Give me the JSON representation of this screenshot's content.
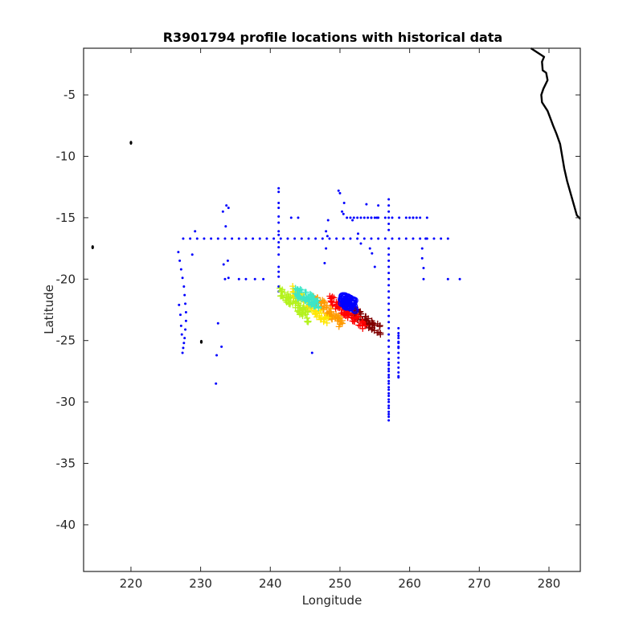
{
  "chart_data": {
    "type": "scatter",
    "title": "R3901794 profile locations with historical data",
    "xlabel": "Longitude",
    "ylabel": "Latitude",
    "xlim": [
      213.2,
      284.5
    ],
    "ylim": [
      -43.8,
      -1.2
    ],
    "xticks": [
      220,
      230,
      240,
      250,
      260,
      270,
      280
    ],
    "yticks": [
      -5,
      -10,
      -15,
      -20,
      -25,
      -30,
      -35,
      -40
    ],
    "grid": false,
    "colors": {
      "historical": "#0000ff",
      "coast": "#000000",
      "axes": "#262626"
    },
    "coastline": {
      "mainland": [
        [
          277.4,
          -1.2
        ],
        [
          279.3,
          -1.9
        ],
        [
          279.0,
          -2.3
        ],
        [
          279.1,
          -3.0
        ],
        [
          279.6,
          -3.2
        ],
        [
          279.8,
          -3.8
        ],
        [
          279.2,
          -4.5
        ],
        [
          278.9,
          -5.0
        ],
        [
          279.0,
          -5.6
        ],
        [
          279.8,
          -6.3
        ],
        [
          280.2,
          -6.9
        ],
        [
          280.6,
          -7.5
        ],
        [
          281.1,
          -8.2
        ],
        [
          281.6,
          -9.0
        ],
        [
          281.9,
          -10.0
        ],
        [
          282.2,
          -11.0
        ],
        [
          282.6,
          -12.0
        ],
        [
          283.1,
          -13.0
        ],
        [
          283.6,
          -14.0
        ],
        [
          284.0,
          -14.8
        ],
        [
          284.5,
          -15.1
        ]
      ],
      "islands": [
        [
          220.0,
          -8.9
        ],
        [
          214.5,
          -17.4
        ],
        [
          230.1,
          -25.1
        ]
      ]
    },
    "historical": {
      "name": "historical data",
      "x": [
        227.5,
        228.5,
        229.5,
        230.5,
        231.5,
        232.5,
        233.5,
        234.5,
        235.5,
        236.5,
        237.5,
        238.5,
        239.5,
        240.5,
        241.5,
        242.5,
        243.5,
        244.5,
        245.5,
        246.5,
        247.5,
        248.5,
        249.5,
        250.5,
        251.5,
        252.5,
        253.5,
        254.5,
        255.5,
        256.5,
        257.5,
        258.5,
        259.5,
        260.5,
        261.5,
        262.5,
        263.5,
        264.5,
        265.5,
        257,
        257,
        257,
        257,
        257,
        257,
        257,
        257,
        257,
        257,
        257,
        257,
        257,
        257,
        257,
        257,
        257,
        257,
        257,
        257,
        257,
        257,
        257,
        257,
        257,
        257,
        257,
        257,
        257,
        257,
        257,
        257,
        257,
        257,
        257,
        257,
        257,
        257,
        257,
        257,
        257,
        257,
        257,
        257,
        257,
        254.5,
        255.5,
        256.5,
        257.5,
        258.5,
        259.5,
        260.5,
        261.5,
        262.5,
        241.2,
        241.2,
        241.2,
        241.2,
        241.2,
        241.2,
        241.2,
        241.2,
        241.2,
        241.2,
        241.2,
        241.2,
        241.2,
        241.2,
        241.2,
        241.2,
        226.8,
        227.0,
        227.2,
        227.4,
        227.6,
        227.7,
        227.8,
        227.9,
        227.9,
        227.8,
        227.7,
        227.6,
        227.5,
        227.4,
        227.3,
        227.2,
        227.1,
        226.9,
        233.2,
        233.7,
        234.0,
        233.6,
        233.3,
        233.9,
        233.5,
        234.0,
        232.5,
        233.0,
        232.3,
        232.2,
        229.2,
        228.8,
        235.5,
        236.5,
        237.8,
        239.0,
        248.0,
        248.2,
        248.0,
        247.8,
        248.3,
        249.8,
        250.0,
        250.3,
        250.6,
        251.0,
        251.5,
        252.0,
        252.5,
        253.0,
        253.5,
        254.0,
        254.5,
        255.0,
        255.3,
        253.0,
        254.3,
        254.6,
        255.0,
        255.5,
        253.8,
        252.6,
        258.4,
        258.4,
        258.4,
        258.4,
        258.4,
        258.4,
        258.4,
        258.4,
        258.4,
        258.4,
        258.4,
        258.4,
        258.4,
        258.4,
        258.4,
        261.8,
        261.8,
        262.0,
        262.3,
        262.0,
        265.5,
        267.2,
        243.0,
        244.0,
        246.0,
        250.5,
        251.8,
        260.0,
        260.5,
        261.0
      ],
      "y": [
        -16.7,
        -16.7,
        -16.7,
        -16.7,
        -16.7,
        -16.7,
        -16.7,
        -16.7,
        -16.7,
        -16.7,
        -16.7,
        -16.7,
        -16.7,
        -16.7,
        -16.7,
        -16.7,
        -16.7,
        -16.7,
        -16.7,
        -16.7,
        -16.7,
        -16.7,
        -16.7,
        -16.7,
        -16.7,
        -16.7,
        -16.7,
        -16.7,
        -16.7,
        -16.7,
        -16.7,
        -16.7,
        -16.7,
        -16.7,
        -16.7,
        -16.7,
        -16.7,
        -16.7,
        -16.7,
        -13.5,
        -14.0,
        -14.5,
        -15.0,
        -15.5,
        -16.0,
        -17.5,
        -18.0,
        -18.5,
        -19.0,
        -19.5,
        -20.0,
        -20.5,
        -21.0,
        -21.5,
        -22.0,
        -22.5,
        -23.0,
        -23.5,
        -24.0,
        -24.5,
        -25.0,
        -25.5,
        -26.0,
        -26.5,
        -27.0,
        -27.5,
        -28.0,
        -28.5,
        -29.0,
        -29.5,
        -30.0,
        -30.5,
        -31.0,
        -31.5,
        -31.2,
        -30.8,
        -30.3,
        -29.8,
        -29.3,
        -28.8,
        -28.3,
        -27.8,
        -27.3,
        -26.8,
        -15.0,
        -15.0,
        -15.0,
        -15.0,
        -15.0,
        -15.0,
        -15.0,
        -15.0,
        -15.0,
        -12.6,
        -12.9,
        -13.8,
        -14.2,
        -14.9,
        -15.4,
        -16.1,
        -16.4,
        -17.0,
        -17.4,
        -18.0,
        -19.0,
        -19.4,
        -19.8,
        -20.6,
        -21.0,
        -17.8,
        -18.5,
        -19.2,
        -19.9,
        -20.6,
        -21.3,
        -22.0,
        -22.7,
        -23.4,
        -24.1,
        -24.8,
        -25.2,
        -25.6,
        -26.0,
        -24.5,
        -23.8,
        -22.9,
        -22.1,
        -14.5,
        -14.0,
        -14.2,
        -15.7,
        -18.8,
        -18.5,
        -20.0,
        -19.9,
        -23.6,
        -25.5,
        -26.2,
        -28.5,
        -16.1,
        -18.0,
        -20.0,
        -20.0,
        -20.0,
        -20.0,
        -16.1,
        -16.5,
        -17.5,
        -18.7,
        -15.2,
        -12.8,
        -13.0,
        -14.5,
        -13.8,
        -15.0,
        -15.0,
        -15.0,
        -15.0,
        -15.0,
        -15.0,
        -15.0,
        -15.0,
        -15.0,
        -15.0,
        -17.1,
        -17.5,
        -17.9,
        -19.0,
        -14.0,
        -13.9,
        -16.3,
        -24.0,
        -24.4,
        -24.8,
        -25.2,
        -25.6,
        -26.0,
        -26.4,
        -26.8,
        -27.2,
        -27.6,
        -28.0,
        -24.6,
        -25.1,
        -25.5,
        -27.9,
        -17.5,
        -18.3,
        -19.1,
        -16.7,
        -20.0,
        -20.0,
        -20.0,
        -15.0,
        -15.0,
        -26.0,
        -14.7,
        -15.2,
        -15.0,
        -15.0,
        -15.0
      ]
    },
    "profile_tracks": [
      {
        "name": "dark red",
        "color": "#800000",
        "x": [
          251.8,
          256.0
        ],
        "y": [
          -22.6,
          -24.3
        ]
      },
      {
        "name": "red",
        "color": "#ff0000",
        "x": [
          248.5,
          253.8
        ],
        "y": [
          -21.6,
          -23.9
        ]
      },
      {
        "name": "orange",
        "color": "#ff9a00",
        "x": [
          246.2,
          250.5
        ],
        "y": [
          -21.4,
          -23.8
        ]
      },
      {
        "name": "yellow",
        "color": "#ffe600",
        "x": [
          243.2,
          248.5
        ],
        "y": [
          -21.0,
          -23.5
        ]
      },
      {
        "name": "green-yellow",
        "color": "#b4f21e",
        "x": [
          241.2,
          245.5
        ],
        "y": [
          -20.9,
          -23.1
        ]
      },
      {
        "name": "cyan",
        "color": "#3ce6c8",
        "x": [
          243.5,
          247.0
        ],
        "y": [
          -21.0,
          -22.0
        ]
      },
      {
        "name": "blue",
        "color": "#0000ff",
        "x": [
          250.2,
          252.2
        ],
        "y": [
          -21.7,
          -22.1
        ]
      }
    ]
  }
}
